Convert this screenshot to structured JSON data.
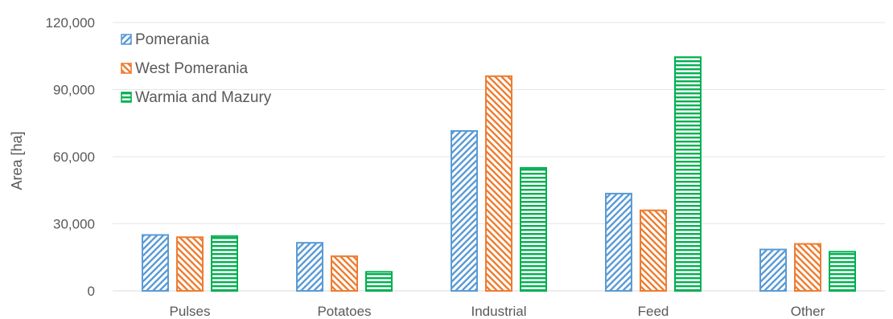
{
  "chart_data": {
    "type": "bar",
    "categories": [
      "Pulses",
      "Potatoes",
      "Industrial",
      "Feed",
      "Other"
    ],
    "series": [
      {
        "name": "Pomerania",
        "values": [
          25000,
          21500,
          71500,
          43500,
          18500
        ],
        "color": "#5b9bd5",
        "pattern": "diagonal-up"
      },
      {
        "name": "West Pomerania",
        "values": [
          24000,
          15500,
          96000,
          36000,
          21000
        ],
        "color": "#ed7d31",
        "pattern": "diagonal-down"
      },
      {
        "name": "Warmia and Mazury",
        "values": [
          24500,
          8500,
          55000,
          104500,
          17500
        ],
        "color": "#00b050",
        "pattern": "horizontal"
      }
    ],
    "ylabel": "Area [ha]",
    "xlabel": "",
    "ylim": [
      0,
      120000
    ],
    "yticks": [
      "0",
      "30,000",
      "60,000",
      "90,000",
      "120,000"
    ],
    "ytick_values": [
      0,
      30000,
      60000,
      90000,
      120000
    ],
    "grid": true,
    "legend_position": "top-left"
  }
}
